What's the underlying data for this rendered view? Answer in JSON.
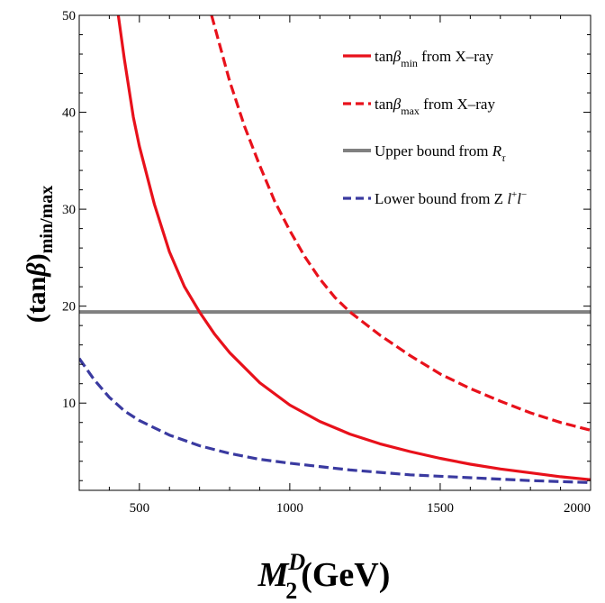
{
  "chart_data": {
    "type": "line",
    "title": "",
    "xlabel": {
      "base": "M",
      "sup": "D",
      "sub": "2",
      "unit": "(GeV)"
    },
    "ylabel": {
      "main": "(tan",
      "greek": "β",
      "close": ")",
      "sub": "min/max"
    },
    "xlim": [
      300,
      2000
    ],
    "ylim": [
      1,
      50
    ],
    "xticks": [
      500,
      1000,
      1500,
      2000
    ],
    "yticks": [
      10,
      20,
      30,
      40,
      50
    ],
    "x_tick_labels": [
      "500",
      "1000",
      "1500",
      "2000"
    ],
    "y_tick_labels": [
      "10",
      "20",
      "30",
      "40",
      "50"
    ],
    "grid": false,
    "legend_position": "top-right",
    "series": [
      {
        "name": "tanβ_min from X-ray",
        "label": {
          "pre": "tan",
          "greek": "β",
          "sub": "min",
          "post": " from X–ray"
        },
        "color": "#e8111b",
        "style": "solid",
        "x": [
          430,
          450,
          480,
          500,
          550,
          600,
          650,
          700,
          750,
          800,
          900,
          1000,
          1100,
          1200,
          1300,
          1400,
          1500,
          1600,
          1700,
          1800,
          1900,
          2000
        ],
        "y": [
          50,
          45.5,
          39.5,
          36.5,
          30.5,
          25.6,
          22,
          19.4,
          17.1,
          15.2,
          12.1,
          9.8,
          8.1,
          6.8,
          5.8,
          5.0,
          4.3,
          3.7,
          3.2,
          2.8,
          2.4,
          2.1
        ]
      },
      {
        "name": "tanβ_max from X-ray",
        "label": {
          "pre": "tan",
          "greek": "β",
          "sub": "max",
          "post": " from X–ray"
        },
        "color": "#e8111b",
        "style": "dashed",
        "x": [
          740,
          800,
          850,
          900,
          950,
          1000,
          1050,
          1100,
          1150,
          1200,
          1250,
          1300,
          1400,
          1500,
          1600,
          1700,
          1800,
          1900,
          2000
        ],
        "y": [
          50,
          43.2,
          38.5,
          34.5,
          30.8,
          27.8,
          25.1,
          22.8,
          20.9,
          19.4,
          18.2,
          17.0,
          14.9,
          13.0,
          11.5,
          10.2,
          9.0,
          8.0,
          7.2
        ]
      },
      {
        "name": "Upper bound from R_τ",
        "label": {
          "pre": "Upper bound from ",
          "italic": "R",
          "sub": "τ",
          "post": ""
        },
        "color": "#808080",
        "style": "solid",
        "x": [
          300,
          2000
        ],
        "y": [
          19.4,
          19.4
        ]
      },
      {
        "name": "Lower bound from Zl⁺l⁻",
        "label": {
          "pre": "Lower bound from Z ",
          "italic": "l",
          "sup1": "+",
          "italic2": "l",
          "sup2": "−"
        },
        "color": "#3a3aa0",
        "style": "dashed",
        "x": [
          300,
          350,
          400,
          450,
          500,
          600,
          700,
          800,
          900,
          1000,
          1200,
          1400,
          1600,
          1800,
          2000
        ],
        "y": [
          14.6,
          12.4,
          10.6,
          9.2,
          8.2,
          6.7,
          5.6,
          4.8,
          4.2,
          3.8,
          3.1,
          2.6,
          2.3,
          2.0,
          1.8
        ]
      }
    ]
  }
}
